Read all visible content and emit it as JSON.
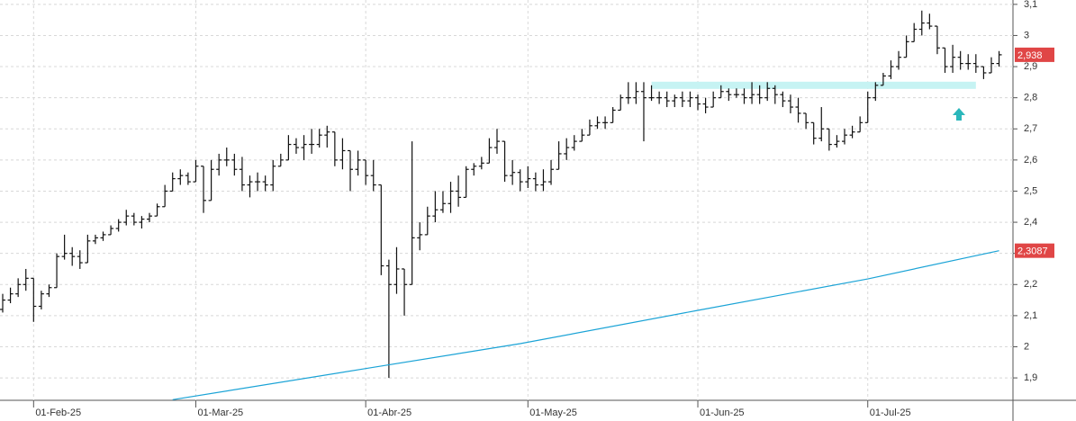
{
  "chart_data": {
    "type": "ohlc",
    "xlim": [
      -0.35,
      130.8
    ],
    "ylim": [
      1.828,
      3.114
    ],
    "yticks": [
      {
        "value": 1.9,
        "label": "1,9"
      },
      {
        "value": 2,
        "label": "2"
      },
      {
        "value": 2.1,
        "label": "2,1"
      },
      {
        "value": 2.2,
        "label": "2,2"
      },
      {
        "value": 2.3,
        "label": "2,3"
      },
      {
        "value": 2.4,
        "label": "2,4"
      },
      {
        "value": 2.5,
        "label": "2,5"
      },
      {
        "value": 2.6,
        "label": "2,6"
      },
      {
        "value": 2.7,
        "label": "2,7"
      },
      {
        "value": 2.8,
        "label": "2,8"
      },
      {
        "value": 2.9,
        "label": "2,9"
      },
      {
        "value": 3,
        "label": "3"
      },
      {
        "value": 3.1,
        "label": "3,1"
      }
    ],
    "xticks": [
      {
        "value": 4,
        "label": "01-Feb-25"
      },
      {
        "value": 25,
        "label": "01-Mar-25"
      },
      {
        "value": 47,
        "label": "01-Abr-25"
      },
      {
        "value": 68,
        "label": "01-May-25"
      },
      {
        "value": 90,
        "label": "01-Jun-25"
      },
      {
        "value": 112,
        "label": "01-Jul-25"
      }
    ],
    "grid": true,
    "color": "#111111",
    "open": [
      2.12,
      2.15,
      2.17,
      2.2,
      2.22,
      2.13,
      2.17,
      2.19,
      2.29,
      2.3,
      2.29,
      2.27,
      2.34,
      2.35,
      2.36,
      2.38,
      2.4,
      2.42,
      2.4,
      2.41,
      2.42,
      2.45,
      2.5,
      2.54,
      2.55,
      2.53,
      2.58,
      2.47,
      2.57,
      2.6,
      2.6,
      2.57,
      2.52,
      2.53,
      2.53,
      2.52,
      2.58,
      2.6,
      2.65,
      2.64,
      2.65,
      2.65,
      2.68,
      2.69,
      2.6,
      2.63,
      2.57,
      2.6,
      2.55,
      2.52,
      2.26,
      2.2,
      2.25,
      2.2,
      2.35,
      2.36,
      2.42,
      2.44,
      2.46,
      2.5,
      2.48,
      2.57,
      2.58,
      2.59,
      2.64,
      2.66,
      2.55,
      2.56,
      2.53,
      2.54,
      2.52,
      2.53,
      2.57,
      2.62,
      2.64,
      2.66,
      2.68,
      2.71,
      2.72,
      2.72,
      2.76,
      2.8,
      2.8,
      2.82,
      2.8,
      2.8,
      2.8,
      2.79,
      2.8,
      2.79,
      2.8,
      2.78,
      2.77,
      2.8,
      2.82,
      2.81,
      2.81,
      2.8,
      2.81,
      2.8,
      2.83,
      2.81,
      2.79,
      2.77,
      2.75,
      2.72,
      2.67,
      2.7,
      2.65,
      2.66,
      2.68,
      2.69,
      2.72,
      2.8,
      2.84,
      2.87,
      2.9,
      2.93,
      2.98,
      3.02,
      3.04,
      3.03,
      2.96,
      2.9,
      2.93,
      2.91,
      2.91,
      2.9,
      2.88,
      2.91
    ],
    "high": [
      2.17,
      2.19,
      2.22,
      2.25,
      2.22,
      2.18,
      2.2,
      2.3,
      2.36,
      2.32,
      2.31,
      2.36,
      2.36,
      2.37,
      2.39,
      2.41,
      2.44,
      2.43,
      2.42,
      2.43,
      2.46,
      2.52,
      2.56,
      2.57,
      2.56,
      2.6,
      2.58,
      2.6,
      2.62,
      2.64,
      2.62,
      2.61,
      2.55,
      2.56,
      2.55,
      2.6,
      2.62,
      2.68,
      2.67,
      2.68,
      2.7,
      2.7,
      2.71,
      2.69,
      2.67,
      2.63,
      2.63,
      2.6,
      2.6,
      2.52,
      2.28,
      2.32,
      2.25,
      2.66,
      2.4,
      2.45,
      2.5,
      2.5,
      2.53,
      2.55,
      2.58,
      2.59,
      2.61,
      2.67,
      2.7,
      2.66,
      2.6,
      2.57,
      2.58,
      2.56,
      2.57,
      2.6,
      2.66,
      2.67,
      2.68,
      2.7,
      2.73,
      2.74,
      2.74,
      2.77,
      2.81,
      2.85,
      2.85,
      2.85,
      2.84,
      2.82,
      2.82,
      2.81,
      2.82,
      2.82,
      2.81,
      2.8,
      2.82,
      2.84,
      2.83,
      2.83,
      2.83,
      2.85,
      2.84,
      2.85,
      2.84,
      2.82,
      2.81,
      2.8,
      2.75,
      2.72,
      2.77,
      2.7,
      2.68,
      2.7,
      2.71,
      2.74,
      2.82,
      2.85,
      2.88,
      2.92,
      2.95,
      3.0,
      3.04,
      3.08,
      3.07,
      3.03,
      2.96,
      2.97,
      2.95,
      2.94,
      2.94,
      2.9,
      2.93,
      2.95
    ],
    "low": [
      2.11,
      2.14,
      2.16,
      2.18,
      2.08,
      2.12,
      2.16,
      2.19,
      2.28,
      2.26,
      2.25,
      2.27,
      2.33,
      2.34,
      2.36,
      2.37,
      2.39,
      2.39,
      2.38,
      2.4,
      2.42,
      2.45,
      2.5,
      2.52,
      2.52,
      2.53,
      2.43,
      2.47,
      2.55,
      2.58,
      2.55,
      2.5,
      2.48,
      2.5,
      2.5,
      2.5,
      2.58,
      2.6,
      2.62,
      2.6,
      2.62,
      2.64,
      2.64,
      2.58,
      2.57,
      2.5,
      2.55,
      2.52,
      2.5,
      2.23,
      1.9,
      2.17,
      2.1,
      2.2,
      2.31,
      2.36,
      2.4,
      2.43,
      2.43,
      2.45,
      2.48,
      2.55,
      2.57,
      2.59,
      2.62,
      2.53,
      2.52,
      2.5,
      2.51,
      2.5,
      2.5,
      2.52,
      2.57,
      2.6,
      2.63,
      2.66,
      2.68,
      2.7,
      2.7,
      2.72,
      2.76,
      2.78,
      2.78,
      2.66,
      2.79,
      2.78,
      2.77,
      2.77,
      2.77,
      2.77,
      2.76,
      2.75,
      2.77,
      2.8,
      2.79,
      2.8,
      2.78,
      2.78,
      2.78,
      2.79,
      2.78,
      2.77,
      2.75,
      2.72,
      2.7,
      2.65,
      2.66,
      2.63,
      2.64,
      2.65,
      2.67,
      2.69,
      2.72,
      2.79,
      2.84,
      2.86,
      2.89,
      2.93,
      2.98,
      3.0,
      3.02,
      2.94,
      2.88,
      2.88,
      2.89,
      2.89,
      2.88,
      2.86,
      2.88,
      2.9
    ],
    "close": [
      2.15,
      2.17,
      2.2,
      2.22,
      2.13,
      2.17,
      2.19,
      2.29,
      2.3,
      2.29,
      2.27,
      2.34,
      2.35,
      2.36,
      2.38,
      2.4,
      2.42,
      2.4,
      2.41,
      2.42,
      2.45,
      2.5,
      2.54,
      2.55,
      2.53,
      2.58,
      2.47,
      2.57,
      2.6,
      2.6,
      2.57,
      2.52,
      2.53,
      2.53,
      2.52,
      2.58,
      2.6,
      2.65,
      2.64,
      2.65,
      2.65,
      2.68,
      2.69,
      2.6,
      2.63,
      2.57,
      2.6,
      2.55,
      2.52,
      2.26,
      2.2,
      2.25,
      2.2,
      2.35,
      2.36,
      2.42,
      2.44,
      2.46,
      2.5,
      2.48,
      2.57,
      2.58,
      2.59,
      2.64,
      2.66,
      2.55,
      2.56,
      2.53,
      2.54,
      2.52,
      2.53,
      2.57,
      2.62,
      2.64,
      2.66,
      2.68,
      2.71,
      2.72,
      2.72,
      2.76,
      2.8,
      2.8,
      2.82,
      2.8,
      2.8,
      2.8,
      2.79,
      2.8,
      2.79,
      2.8,
      2.78,
      2.77,
      2.8,
      2.82,
      2.81,
      2.81,
      2.8,
      2.81,
      2.8,
      2.83,
      2.81,
      2.79,
      2.77,
      2.75,
      2.72,
      2.67,
      2.7,
      2.65,
      2.66,
      2.68,
      2.69,
      2.72,
      2.8,
      2.84,
      2.87,
      2.9,
      2.93,
      2.98,
      3.02,
      3.04,
      3.03,
      2.96,
      2.9,
      2.93,
      2.91,
      2.91,
      2.9,
      2.88,
      2.91,
      2.938
    ],
    "last_close": {
      "value": 2.938,
      "label": "2,938",
      "color": "#e04646"
    },
    "ma": {
      "color": "#1aa3d6",
      "x": [
        22,
        47,
        67,
        90,
        112,
        129
      ],
      "values": [
        1.83,
        1.93,
        2.01,
        2.117,
        2.218,
        2.3087
      ],
      "last": {
        "value": 2.3087,
        "label": "2,3087",
        "color": "#e04646"
      }
    },
    "support": {
      "value": 2.84,
      "from": 84,
      "to": 126,
      "color": "#c6f3f3"
    }
  }
}
